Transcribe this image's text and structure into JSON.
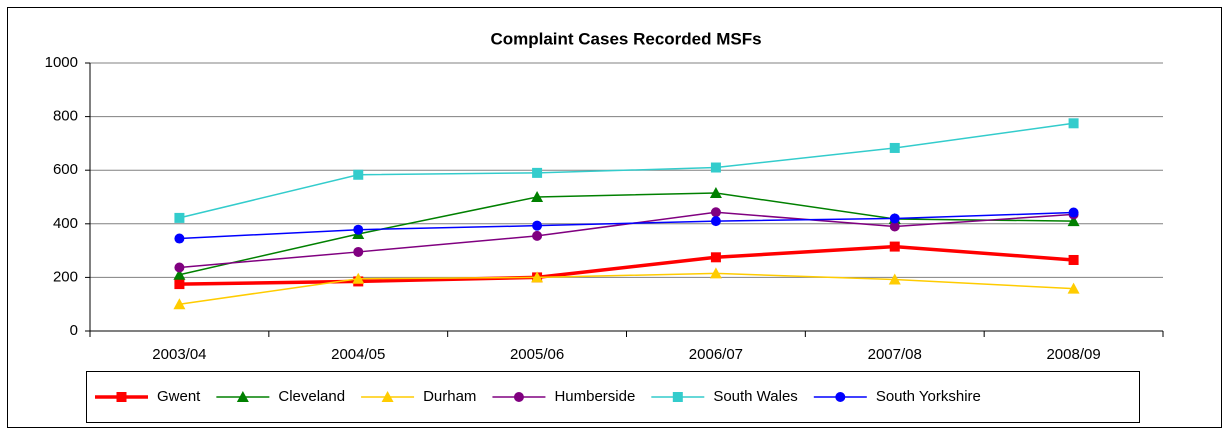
{
  "chart_data": {
    "type": "line",
    "title": "Complaint Cases Recorded MSFs",
    "categories": [
      "2003/04",
      "2004/05",
      "2005/06",
      "2006/07",
      "2007/08",
      "2008/09"
    ],
    "ylim": [
      0,
      1000
    ],
    "yticks": [
      0,
      200,
      400,
      600,
      800,
      1000
    ],
    "grid": true,
    "legend": "bottom",
    "series": [
      {
        "name": "Gwent",
        "color": "#ff0000",
        "marker": "square",
        "line_width": 3.5,
        "values": [
          175,
          185,
          200,
          275,
          315,
          265
        ]
      },
      {
        "name": "Cleveland",
        "color": "#008000",
        "marker": "triangle",
        "line_width": 1.5,
        "values": [
          210,
          362,
          500,
          515,
          418,
          410
        ]
      },
      {
        "name": "Durham",
        "color": "#ffcc00",
        "marker": "triangle",
        "line_width": 1.5,
        "values": [
          100,
          195,
          200,
          215,
          192,
          158
        ]
      },
      {
        "name": "Humberside",
        "color": "#800080",
        "marker": "circle",
        "line_width": 1.5,
        "values": [
          237,
          295,
          355,
          443,
          390,
          435
        ]
      },
      {
        "name": "South Wales",
        "color": "#33cccc",
        "marker": "square",
        "line_width": 1.5,
        "values": [
          422,
          583,
          590,
          610,
          683,
          775
        ]
      },
      {
        "name": "South Yorkshire",
        "color": "#0000ff",
        "marker": "circle",
        "line_width": 1.5,
        "values": [
          345,
          378,
          393,
          410,
          420,
          442
        ]
      }
    ]
  }
}
